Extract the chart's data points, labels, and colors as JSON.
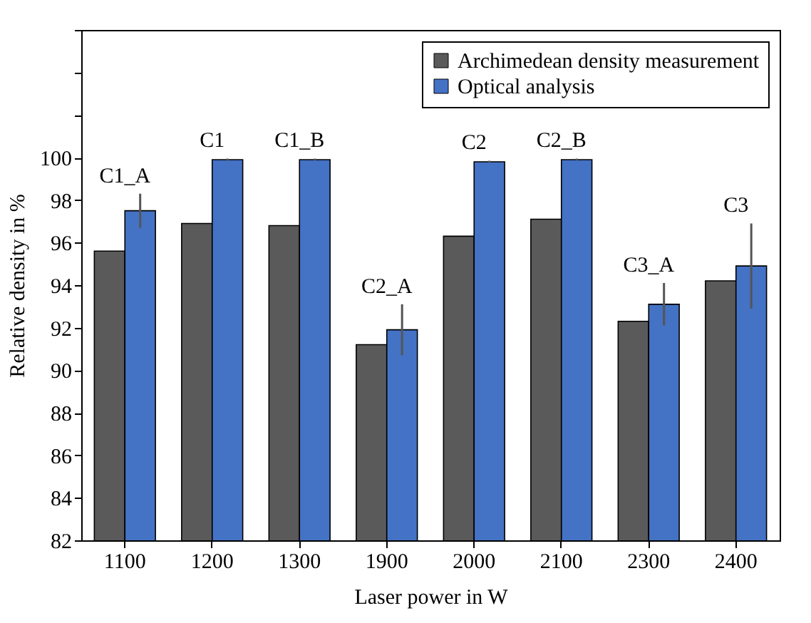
{
  "chart_data": {
    "type": "bar",
    "xlabel": "Laser power in W",
    "ylabel": "Relative density in %",
    "categories": [
      "1100",
      "1200",
      "1300",
      "1900",
      "2000",
      "2100",
      "2300",
      "2400"
    ],
    "series": [
      {
        "name": "Archimedean density measurement",
        "color": "#5a5a5a",
        "values": [
          95.6,
          96.9,
          96.8,
          91.2,
          96.3,
          97.1,
          92.3,
          94.2
        ]
      },
      {
        "name": "Optical analysis",
        "color": "#4472c4",
        "values": [
          97.5,
          99.9,
          99.9,
          91.9,
          99.8,
          99.9,
          93.1,
          94.9
        ],
        "errors": [
          0.8,
          0.05,
          0.05,
          1.2,
          0.05,
          0.05,
          1.0,
          2.0
        ]
      }
    ],
    "ylim": [
      82,
      106
    ],
    "yticks": [
      82,
      84,
      86,
      88,
      90,
      92,
      94,
      96,
      98,
      100,
      {
        "value": 102,
        "label": null
      },
      {
        "value": 104,
        "label": null
      },
      {
        "value": 106,
        "label": null
      }
    ],
    "annotations": [
      "C1_A",
      "C1",
      "C1_B",
      "C2_A",
      "C2",
      "C2_B",
      "C3_A",
      "C3"
    ],
    "legend": "top right",
    "grid": false
  }
}
